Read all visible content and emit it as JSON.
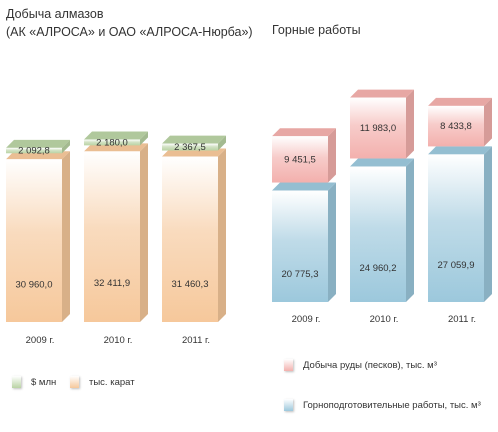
{
  "chart_data": [
    {
      "type": "bar",
      "stacked": true,
      "title": "Добыча алмазов",
      "subtitle": "(АК «АЛРОСА» и ОАО «АЛРОСА-Нюрба»)",
      "categories": [
        "2009 г.",
        "2010 г.",
        "2011 г."
      ],
      "series": [
        {
          "name": "тыс. карат",
          "values": [
            30960.0,
            32411.9,
            31460.3
          ],
          "labels": [
            "30 960,0",
            "32 411,9",
            "31 460,3"
          ],
          "color": "#f6c89b"
        },
        {
          "name": "$ млн",
          "values": [
            2092.8,
            2180.0,
            2367.5
          ],
          "labels": [
            "2 092,8",
            "2 180,0",
            "2 367,5"
          ],
          "color": "#b9d3a4"
        }
      ],
      "legend_position": "bottom"
    },
    {
      "type": "bar",
      "stacked": true,
      "title": "Горные работы",
      "categories": [
        "2009 г.",
        "2010 г.",
        "2011 г."
      ],
      "series": [
        {
          "name": "Горноподготовительные работы, тыс. м³",
          "values": [
            20775.3,
            24960.2,
            27059.9
          ],
          "labels": [
            "20 775,3",
            "24 960,2",
            "27 059,9"
          ],
          "color": "#9cc8dc"
        },
        {
          "name": "Добыча руды (песков), тыс. м³",
          "values": [
            9451.5,
            11983.0,
            8433.8
          ],
          "labels": [
            "9 451,5",
            "11 983,0",
            "8 433,8"
          ],
          "color": "#f3b0ad"
        }
      ],
      "legend_position": "bottom"
    }
  ]
}
